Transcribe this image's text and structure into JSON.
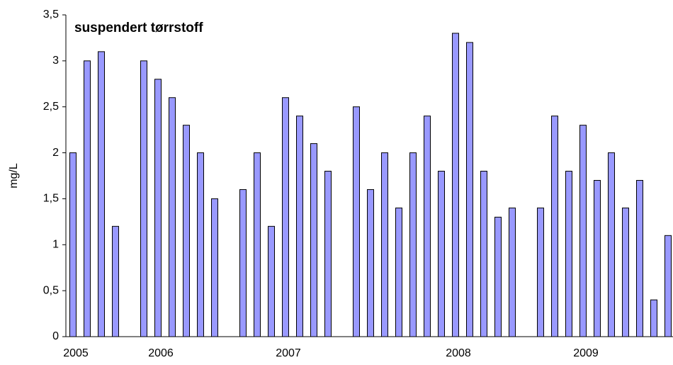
{
  "chart_data": {
    "type": "bar",
    "title": "suspendert tørrstoff",
    "y_label": "mg/L",
    "categories": [
      "2005",
      null,
      null,
      null,
      null,
      null,
      "2006",
      null,
      null,
      null,
      null,
      null,
      null,
      null,
      null,
      "2007",
      null,
      null,
      null,
      null,
      null,
      null,
      null,
      null,
      null,
      null,
      null,
      "2008",
      null,
      null,
      null,
      null,
      null,
      null,
      null,
      null,
      "2009",
      null,
      null,
      null,
      null,
      null,
      null
    ],
    "values": [
      2.0,
      3.0,
      3.1,
      1.2,
      null,
      3.0,
      2.8,
      2.6,
      2.3,
      2.0,
      1.5,
      null,
      1.6,
      2.0,
      1.2,
      2.6,
      2.4,
      2.1,
      1.8,
      null,
      2.5,
      1.6,
      2.0,
      1.4,
      2.0,
      2.4,
      1.8,
      3.3,
      3.2,
      1.8,
      1.3,
      1.4,
      null,
      1.4,
      2.4,
      1.8,
      2.3,
      1.7,
      2.0,
      1.4,
      1.7,
      0.4,
      1.1
    ],
    "color": "#9999ff",
    "ylim": [
      0,
      3.5
    ],
    "yticks": [
      0,
      {
        "value": 0.5,
        "label": "0,5"
      },
      1,
      {
        "value": 1.5,
        "label": "1,5"
      },
      2,
      {
        "value": 2.5,
        "label": "2,5"
      },
      3,
      {
        "value": 3.5,
        "label": "3,5"
      }
    ],
    "grid": false
  }
}
